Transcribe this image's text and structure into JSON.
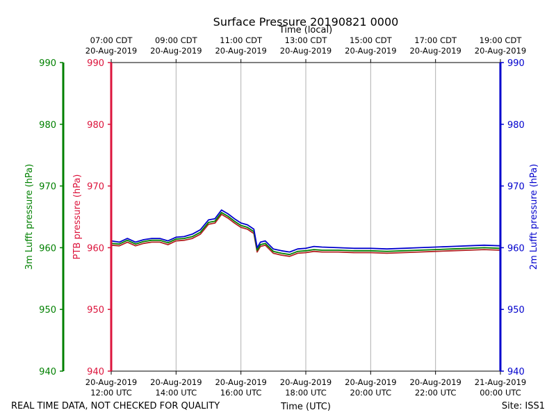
{
  "chart_data": {
    "type": "line",
    "title": "Surface Pressure 20190821 0000",
    "top_axis_label": "Time (local)",
    "xlabel": "Time (UTC)",
    "footer_left": "REAL TIME DATA, NOT CHECKED FOR QUALITY",
    "footer_right": "Site: ISS1",
    "x_range_hours": [
      12.0,
      24.0
    ],
    "x_ticks_hours": [
      12,
      14,
      16,
      18,
      20,
      22,
      24
    ],
    "bottom_tick_labels": [
      {
        "date": "20-Aug-2019",
        "time": "12:00 UTC"
      },
      {
        "date": "20-Aug-2019",
        "time": "14:00 UTC"
      },
      {
        "date": "20-Aug-2019",
        "time": "16:00 UTC"
      },
      {
        "date": "20-Aug-2019",
        "time": "18:00 UTC"
      },
      {
        "date": "20-Aug-2019",
        "time": "20:00 UTC"
      },
      {
        "date": "20-Aug-2019",
        "time": "22:00 UTC"
      },
      {
        "date": "21-Aug-2019",
        "time": "00:00 UTC"
      }
    ],
    "top_tick_labels": [
      {
        "time": "07:00 CDT",
        "date": "20-Aug-2019"
      },
      {
        "time": "09:00 CDT",
        "date": "20-Aug-2019"
      },
      {
        "time": "11:00 CDT",
        "date": "20-Aug-2019"
      },
      {
        "time": "13:00 CDT",
        "date": "20-Aug-2019"
      },
      {
        "time": "15:00 CDT",
        "date": "20-Aug-2019"
      },
      {
        "time": "17:00 CDT",
        "date": "20-Aug-2019"
      },
      {
        "time": "19:00 CDT",
        "date": "20-Aug-2019"
      }
    ],
    "ylim": [
      940,
      990
    ],
    "y_ticks": [
      "940",
      "950",
      "960",
      "970",
      "980",
      "990"
    ],
    "axes": {
      "lufft3m": {
        "label": "3m Lufft pressure (hPa)",
        "color": "#008000"
      },
      "ptb": {
        "label": "PTB pressure (hPa)",
        "color": "#dc143c"
      },
      "lufft2m": {
        "label": "2m Lufft pressure (hPa)",
        "color": "#0000cd"
      }
    },
    "grid_color": "#b0b0b0",
    "series": [
      {
        "name": "PTB pressure",
        "color": "#b22222",
        "x": [
          12.0,
          12.25,
          12.5,
          12.75,
          13.0,
          13.25,
          13.5,
          13.75,
          14.0,
          14.25,
          14.5,
          14.75,
          15.0,
          15.2,
          15.4,
          15.6,
          15.8,
          16.0,
          16.2,
          16.4,
          16.5,
          16.6,
          16.75,
          17.0,
          17.25,
          17.5,
          17.75,
          18.0,
          18.25,
          18.5,
          19.0,
          19.5,
          20.0,
          20.5,
          21.0,
          21.5,
          22.0,
          22.5,
          23.0,
          23.5,
          24.0
        ],
        "values": [
          960.4,
          960.3,
          960.9,
          960.3,
          960.7,
          960.9,
          960.9,
          960.5,
          961.1,
          961.2,
          961.5,
          962.2,
          963.8,
          964.0,
          965.4,
          964.8,
          964.0,
          963.3,
          963.0,
          962.3,
          959.3,
          960.2,
          960.4,
          959.1,
          958.8,
          958.6,
          959.1,
          959.2,
          959.4,
          959.3,
          959.3,
          959.2,
          959.2,
          959.1,
          959.2,
          959.3,
          959.4,
          959.5,
          959.6,
          959.7,
          959.6
        ]
      },
      {
        "name": "3m Lufft pressure",
        "color": "#008000",
        "x": [
          12.0,
          12.25,
          12.5,
          12.75,
          13.0,
          13.25,
          13.5,
          13.75,
          14.0,
          14.25,
          14.5,
          14.75,
          15.0,
          15.2,
          15.4,
          15.6,
          15.8,
          16.0,
          16.2,
          16.4,
          16.5,
          16.6,
          16.75,
          17.0,
          17.25,
          17.5,
          17.75,
          18.0,
          18.25,
          18.5,
          19.0,
          19.5,
          20.0,
          20.5,
          21.0,
          21.5,
          22.0,
          22.5,
          23.0,
          23.5,
          24.0
        ],
        "values": [
          960.7,
          960.6,
          961.2,
          960.6,
          961.0,
          961.2,
          961.2,
          960.8,
          961.4,
          961.5,
          961.8,
          962.5,
          964.1,
          964.3,
          965.7,
          965.1,
          964.3,
          963.6,
          963.3,
          962.6,
          959.6,
          960.5,
          960.7,
          959.4,
          959.1,
          958.9,
          959.4,
          959.5,
          959.7,
          959.6,
          959.6,
          959.5,
          959.5,
          959.4,
          959.5,
          959.6,
          959.7,
          959.8,
          959.9,
          960.0,
          959.9
        ]
      },
      {
        "name": "2m Lufft pressure",
        "color": "#0000cd",
        "x": [
          12.0,
          12.25,
          12.5,
          12.75,
          13.0,
          13.25,
          13.5,
          13.75,
          14.0,
          14.25,
          14.5,
          14.75,
          15.0,
          15.2,
          15.4,
          15.6,
          15.8,
          16.0,
          16.2,
          16.4,
          16.5,
          16.6,
          16.75,
          17.0,
          17.25,
          17.5,
          17.75,
          18.0,
          18.25,
          18.5,
          19.0,
          19.5,
          20.0,
          20.5,
          21.0,
          21.5,
          22.0,
          22.5,
          23.0,
          23.5,
          24.0
        ],
        "values": [
          961.1,
          960.9,
          961.5,
          960.9,
          961.3,
          961.5,
          961.5,
          961.1,
          961.7,
          961.8,
          962.2,
          962.9,
          964.5,
          964.7,
          966.1,
          965.5,
          964.7,
          964.0,
          963.7,
          963.0,
          960.0,
          960.9,
          961.1,
          959.8,
          959.5,
          959.3,
          959.8,
          959.9,
          960.2,
          960.1,
          960.0,
          959.9,
          959.9,
          959.8,
          959.9,
          960.0,
          960.1,
          960.2,
          960.3,
          960.4,
          960.3
        ]
      }
    ]
  }
}
